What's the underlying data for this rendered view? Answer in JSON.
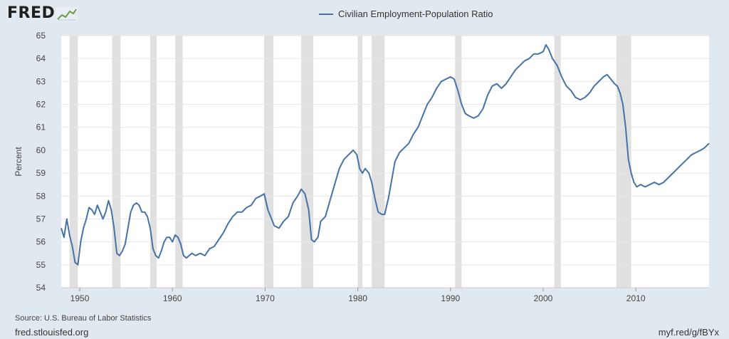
{
  "branding": {
    "logo_text": "FRED"
  },
  "footer": {
    "source": "Source: U.S. Bureau of Labor Statistics",
    "site": "fred.stlouisfed.org",
    "short_url": "myf.red/g/fBYx"
  },
  "colors": {
    "series": "#4572a7",
    "recession": "#e0e0e0",
    "grid": "#e6e6e6",
    "background": "#e1e9f0"
  },
  "chart_data": {
    "type": "line",
    "title": "",
    "xlabel": "",
    "ylabel": "Percent",
    "ylim": [
      54,
      65
    ],
    "xlim": [
      1948.0,
      2017.9
    ],
    "y_ticks": [
      54,
      55,
      56,
      57,
      58,
      59,
      60,
      61,
      62,
      63,
      64,
      65
    ],
    "x_ticks": [
      1950,
      1960,
      1970,
      1980,
      1990,
      2000,
      2010
    ],
    "grid": true,
    "legend_position": "top-center",
    "recessions": [
      [
        1948.9,
        1949.8
      ],
      [
        1953.5,
        1954.4
      ],
      [
        1957.6,
        1958.3
      ],
      [
        1960.3,
        1961.1
      ],
      [
        1969.9,
        1970.9
      ],
      [
        1973.9,
        1975.2
      ],
      [
        1980.0,
        1980.5
      ],
      [
        1981.5,
        1982.9
      ],
      [
        1990.5,
        1991.2
      ],
      [
        2001.2,
        2001.9
      ],
      [
        2007.9,
        2009.5
      ]
    ],
    "series": [
      {
        "name": "Civilian Employment-Population Ratio",
        "x": [
          1948.0,
          1948.3,
          1948.6,
          1948.9,
          1949.2,
          1949.5,
          1949.8,
          1950.1,
          1950.4,
          1950.7,
          1951.0,
          1951.3,
          1951.6,
          1951.9,
          1952.2,
          1952.5,
          1952.8,
          1953.1,
          1953.4,
          1953.7,
          1954.0,
          1954.3,
          1954.6,
          1954.9,
          1955.2,
          1955.5,
          1955.8,
          1956.1,
          1956.4,
          1956.7,
          1957.0,
          1957.3,
          1957.6,
          1957.9,
          1958.2,
          1958.5,
          1958.8,
          1959.1,
          1959.4,
          1959.7,
          1960.0,
          1960.3,
          1960.6,
          1960.9,
          1961.2,
          1961.5,
          1961.8,
          1962.1,
          1962.5,
          1963.0,
          1963.5,
          1964.0,
          1964.5,
          1965.0,
          1965.5,
          1966.0,
          1966.5,
          1967.0,
          1967.5,
          1968.0,
          1968.5,
          1969.0,
          1969.5,
          1969.9,
          1970.3,
          1970.7,
          1971.0,
          1971.5,
          1972.0,
          1972.5,
          1973.0,
          1973.5,
          1973.9,
          1974.3,
          1974.7,
          1975.0,
          1975.3,
          1975.7,
          1976.0,
          1976.5,
          1977.0,
          1977.5,
          1978.0,
          1978.5,
          1979.0,
          1979.5,
          1979.9,
          1980.2,
          1980.5,
          1980.8,
          1981.2,
          1981.5,
          1981.9,
          1982.2,
          1982.6,
          1982.9,
          1983.3,
          1983.7,
          1984.0,
          1984.5,
          1985.0,
          1985.5,
          1986.0,
          1986.5,
          1987.0,
          1987.5,
          1988.0,
          1988.5,
          1989.0,
          1989.5,
          1990.0,
          1990.4,
          1990.8,
          1991.2,
          1991.6,
          1992.0,
          1992.5,
          1993.0,
          1993.5,
          1994.0,
          1994.5,
          1995.0,
          1995.5,
          1996.0,
          1996.5,
          1997.0,
          1997.5,
          1998.0,
          1998.5,
          1999.0,
          1999.5,
          2000.0,
          2000.3,
          2000.6,
          2001.0,
          2001.5,
          2002.0,
          2002.5,
          2003.0,
          2003.5,
          2004.0,
          2004.5,
          2005.0,
          2005.5,
          2006.0,
          2006.5,
          2006.9,
          2007.3,
          2007.7,
          2008.0,
          2008.3,
          2008.6,
          2008.9,
          2009.2,
          2009.5,
          2009.8,
          2010.1,
          2010.5,
          2011.0,
          2011.5,
          2012.0,
          2012.5,
          2013.0,
          2013.5,
          2014.0,
          2014.5,
          2015.0,
          2015.5,
          2016.0,
          2016.5,
          2017.0,
          2017.4,
          2017.9
        ],
        "values": [
          56.6,
          56.2,
          57.0,
          56.3,
          55.8,
          55.1,
          55.0,
          56.0,
          56.6,
          57.0,
          57.5,
          57.4,
          57.2,
          57.6,
          57.3,
          57.0,
          57.3,
          57.8,
          57.4,
          56.6,
          55.5,
          55.4,
          55.6,
          55.9,
          56.6,
          57.3,
          57.6,
          57.7,
          57.6,
          57.3,
          57.3,
          57.1,
          56.6,
          55.7,
          55.4,
          55.3,
          55.6,
          56.0,
          56.2,
          56.2,
          56.0,
          56.3,
          56.2,
          55.9,
          55.4,
          55.3,
          55.4,
          55.5,
          55.4,
          55.5,
          55.4,
          55.7,
          55.8,
          56.1,
          56.4,
          56.8,
          57.1,
          57.3,
          57.3,
          57.5,
          57.6,
          57.9,
          58.0,
          58.1,
          57.4,
          57.0,
          56.7,
          56.6,
          56.9,
          57.1,
          57.7,
          58.0,
          58.3,
          58.1,
          57.4,
          56.1,
          56.0,
          56.2,
          56.9,
          57.1,
          57.8,
          58.5,
          59.2,
          59.6,
          59.8,
          60.0,
          59.8,
          59.2,
          59.0,
          59.2,
          59.0,
          58.6,
          57.8,
          57.3,
          57.2,
          57.2,
          57.9,
          58.8,
          59.5,
          59.9,
          60.1,
          60.3,
          60.7,
          61.0,
          61.5,
          62.0,
          62.3,
          62.7,
          63.0,
          63.1,
          63.2,
          63.1,
          62.6,
          62.0,
          61.6,
          61.5,
          61.4,
          61.5,
          61.8,
          62.4,
          62.8,
          62.9,
          62.7,
          62.9,
          63.2,
          63.5,
          63.7,
          63.9,
          64.0,
          64.2,
          64.2,
          64.3,
          64.6,
          64.4,
          64.0,
          63.7,
          63.2,
          62.8,
          62.6,
          62.3,
          62.2,
          62.3,
          62.5,
          62.8,
          63.0,
          63.2,
          63.3,
          63.1,
          62.9,
          62.8,
          62.5,
          62.0,
          61.0,
          59.6,
          59.0,
          58.6,
          58.4,
          58.5,
          58.4,
          58.5,
          58.6,
          58.5,
          58.6,
          58.8,
          59.0,
          59.2,
          59.4,
          59.6,
          59.8,
          59.9,
          60.0,
          60.1,
          60.3
        ]
      }
    ]
  }
}
